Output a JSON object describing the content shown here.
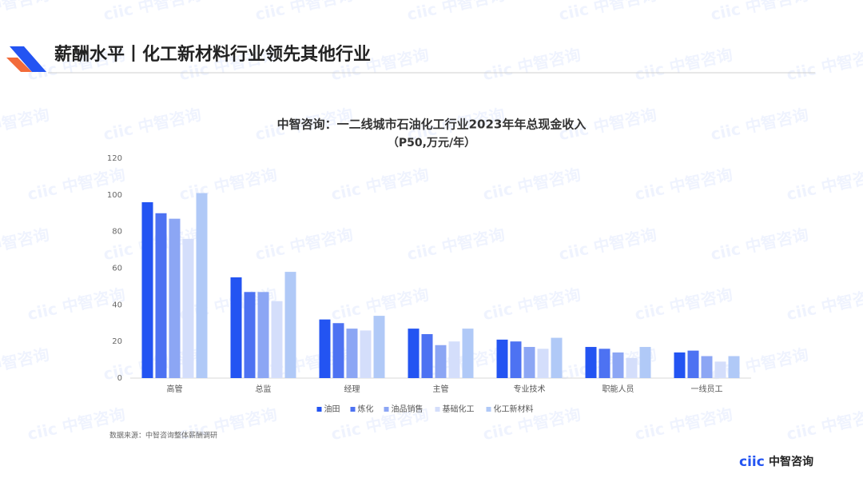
{
  "slide_title": "薪酬水平丨化工新材料行业领先其他行业",
  "watermark": "ciic 中智咨询",
  "chart_data": {
    "type": "bar",
    "title": "中智咨询：一二线城市石油化工行业2023年年总现金收入",
    "subtitle": "（P50,万元/年）",
    "categories": [
      "高管",
      "总监",
      "经理",
      "主管",
      "专业技术",
      "职能人员",
      "一线员工"
    ],
    "series": [
      {
        "name": "油田",
        "color": "#2354f2",
        "values": [
          96,
          55,
          32,
          27,
          21,
          17,
          14
        ]
      },
      {
        "name": "炼化",
        "color": "#4d72f2",
        "values": [
          90,
          47,
          30,
          24,
          20,
          16,
          15
        ]
      },
      {
        "name": "油品销售",
        "color": "#8ca6f4",
        "values": [
          87,
          47,
          27,
          18,
          17,
          14,
          12
        ]
      },
      {
        "name": "基础化工",
        "color": "#d4defb",
        "values": [
          76,
          42,
          26,
          20,
          16,
          11,
          9
        ]
      },
      {
        "name": "化工新材料",
        "color": "#b0c9f7",
        "values": [
          101,
          58,
          34,
          27,
          22,
          17,
          12
        ]
      }
    ],
    "ylim": [
      0,
      120
    ],
    "yticks": [
      0,
      20,
      40,
      60,
      80,
      100,
      120
    ],
    "grid": false,
    "legend": "bottom",
    "source": "数据来源：中智咨询整体薪酬调研"
  },
  "logo": {
    "mark": "ciic",
    "name": "中智咨询"
  }
}
